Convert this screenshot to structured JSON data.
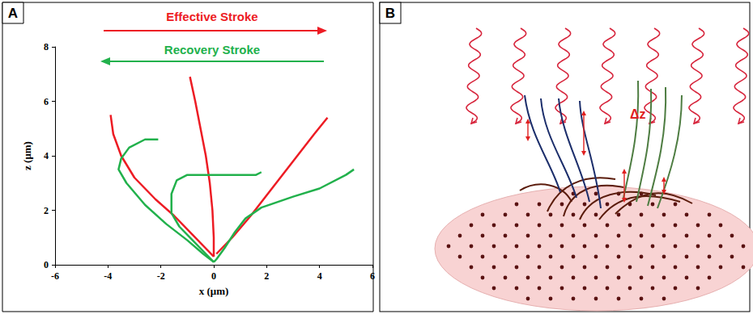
{
  "chart_data": {
    "type": "line",
    "title": "A",
    "x_label": "x (μm)",
    "y_label": "z (μm)",
    "xlim": [
      -6,
      6
    ],
    "xticks": [
      -6,
      -4,
      -2,
      0,
      2,
      4,
      6
    ],
    "ylim": [
      0,
      8
    ],
    "yticks": [
      0,
      2,
      4,
      6,
      8
    ],
    "grid": false,
    "series": [
      {
        "name": "Effective Stroke",
        "color": "#ed1c24",
        "curves": [
          {
            "x": [
              -3.9,
              -3.8,
              -3.5,
              -3.0,
              -2.2,
              -1.5,
              -0.8,
              -0.3,
              0.0
            ],
            "y": [
              5.5,
              4.8,
              4.0,
              3.2,
              2.4,
              1.8,
              1.1,
              0.6,
              0.3
            ]
          },
          {
            "x": [
              -0.9,
              -0.7,
              -0.5,
              -0.3,
              -0.15,
              -0.05,
              0.0,
              0.0
            ],
            "y": [
              6.9,
              6.0,
              5.0,
              4.0,
              3.0,
              2.0,
              1.0,
              0.3
            ]
          },
          {
            "x": [
              4.3,
              3.8,
              3.0,
              2.2,
              1.4,
              0.7,
              0.3,
              0.1
            ],
            "y": [
              5.4,
              4.8,
              3.8,
              2.8,
              1.8,
              1.0,
              0.6,
              0.4
            ]
          }
        ]
      },
      {
        "name": "Recovery Stroke",
        "color": "#22b14c",
        "curves": [
          {
            "x": [
              -2.1,
              -2.6,
              -3.2,
              -3.5,
              -3.6,
              -3.3,
              -2.6,
              -1.8,
              -1.0,
              -0.4,
              0.0
            ],
            "y": [
              4.6,
              4.6,
              4.3,
              3.9,
              3.5,
              3.0,
              2.2,
              1.5,
              0.9,
              0.4,
              0.1
            ]
          },
          {
            "x": [
              1.8,
              1.6,
              0.5,
              -1.0,
              -1.4,
              -1.6,
              -1.6,
              -1.3,
              -0.8,
              -0.3,
              0.0
            ],
            "y": [
              3.4,
              3.3,
              3.3,
              3.3,
              3.1,
              2.6,
              1.9,
              1.4,
              0.9,
              0.4,
              0.1
            ]
          },
          {
            "x": [
              5.3,
              5.0,
              4.0,
              3.0,
              1.8,
              1.2,
              0.8,
              0.4,
              0.1,
              0.0
            ],
            "y": [
              3.5,
              3.3,
              2.8,
              2.5,
              2.1,
              1.7,
              1.2,
              0.6,
              0.2,
              0.1
            ]
          }
        ]
      }
    ]
  },
  "diagram": {
    "title": "B",
    "annotation": "Δz"
  }
}
